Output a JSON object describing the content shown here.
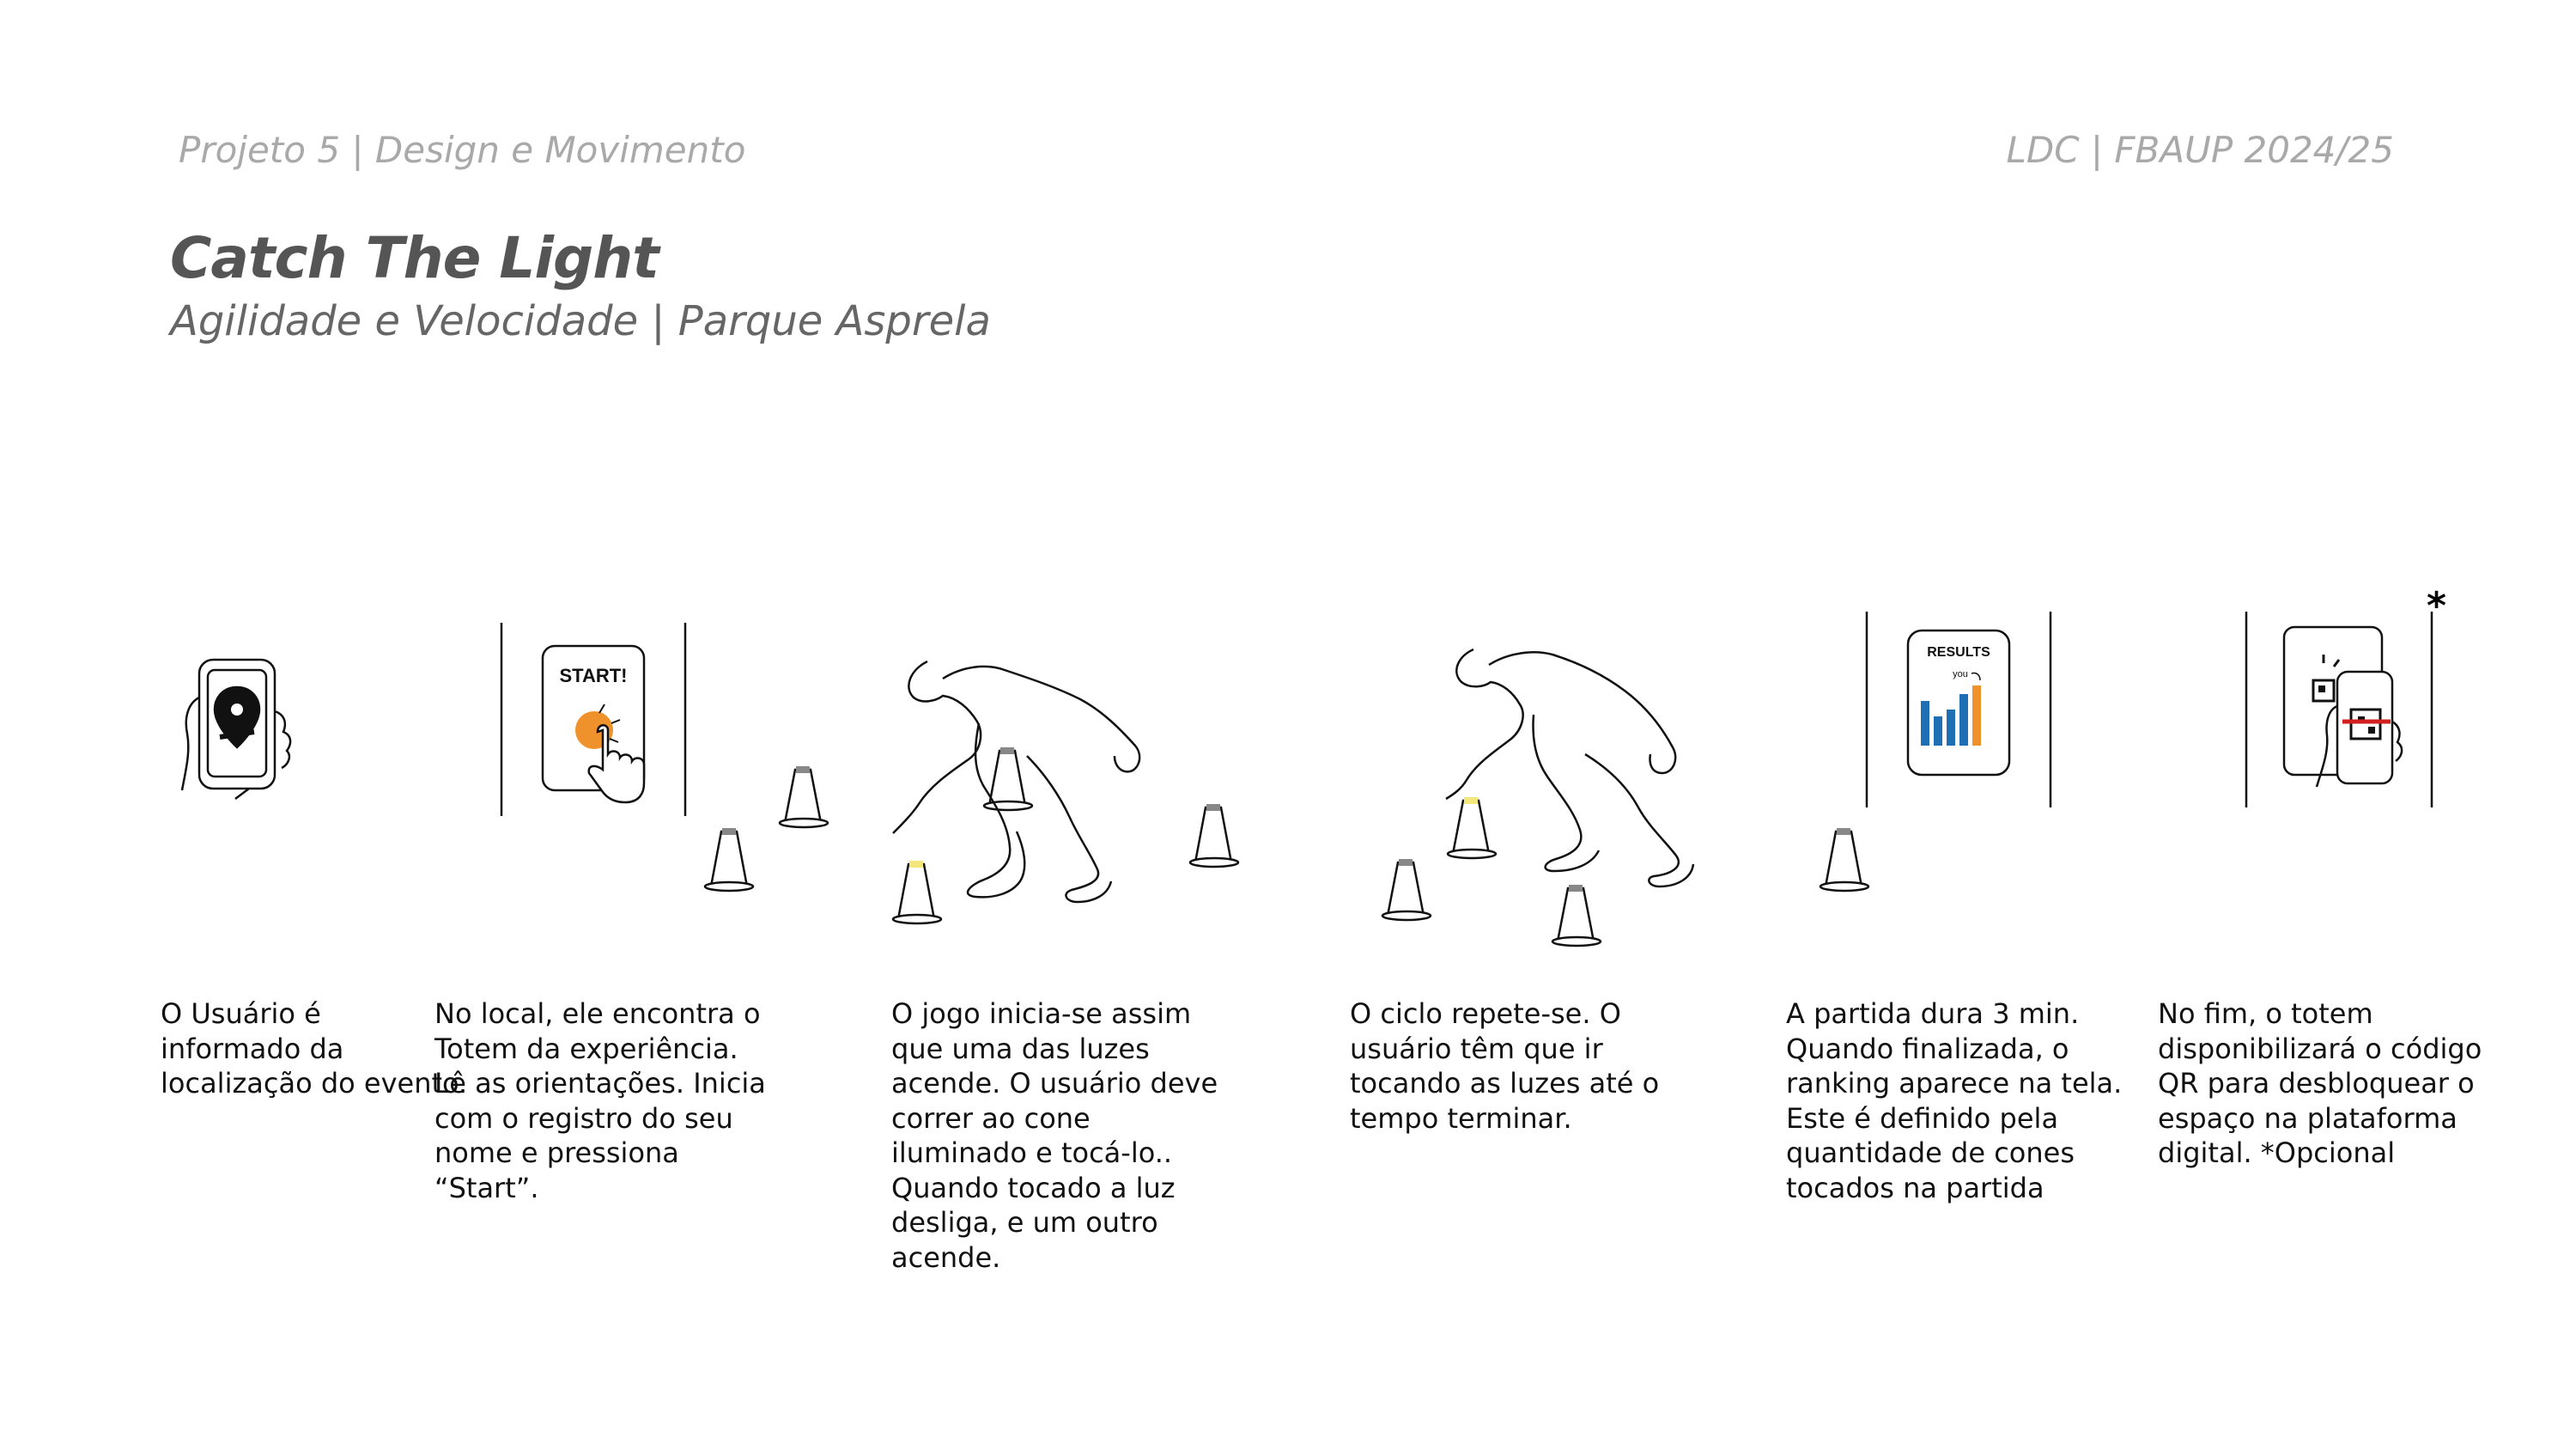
{
  "header": {
    "left": "Projeto 5 | Design e Movimento",
    "right": "LDC | FBAUP 2024/25"
  },
  "title": "Catch The Light",
  "subtitle": "Agilidade e Velocidade | Parque Asprela",
  "totem_start": {
    "label": "START!"
  },
  "totem_results": {
    "label": "RESULTS",
    "you_label": "you"
  },
  "colors": {
    "accent_orange": "#f0922b",
    "light_yellow": "#f3e67a",
    "bar_blue": "#1f6fb5",
    "qr_red": "#d22020"
  },
  "steps": [
    {
      "text": "O Usuário é\ninformado da\nlocalização do evento."
    },
    {
      "text": "No local, ele encontra o\nTotem da experiência.\nLê as orientações. Inicia\ncom o registro do seu\nnome e pressiona\n“Start”."
    },
    {
      "text": "O jogo inicia-se assim\nque uma das  luzes\nacende.  O usuário deve\ncorrer ao cone\niluminado e tocá-lo..\nQuando tocado a luz\ndesliga, e um outro\nacende."
    },
    {
      "text": "O ciclo repete-se. O\nusuário têm que ir\ntocando as luzes até o\ntempo terminar."
    },
    {
      "text": "A partida dura 3 min.\nQuando finalizada, o\nranking aparece na tela.\nEste é definido pela\nquantidade de cones\ntocados na partida"
    },
    {
      "text": "No fim, o totem\ndisponibilizará o código\nQR para desbloquear o\nespaço na plataforma\ndigital. *Opcional"
    }
  ],
  "asterisk": "*"
}
